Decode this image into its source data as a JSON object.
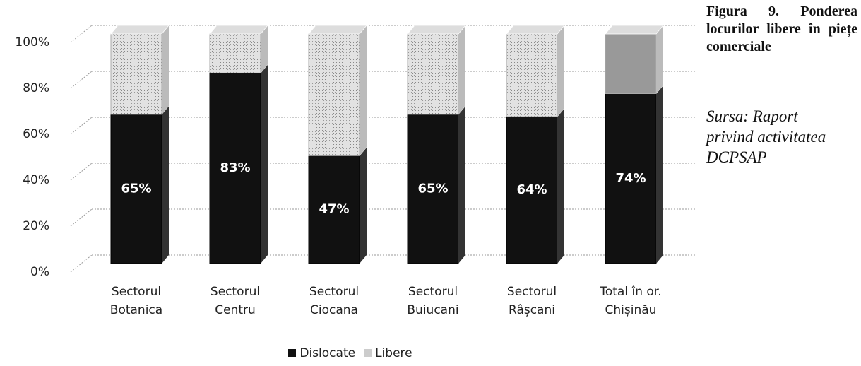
{
  "chart_data": {
    "type": "stacked_bar_3d",
    "caption": "Figura 9. Ponderea locurilor libere în piețe comerciale",
    "source": "Sursa: Raport privind activitatea DCPSAP",
    "categories": [
      "Sectorul Botanica",
      "Sectorul Centru",
      "Sectorul Ciocana",
      "Sectorul Buiucani",
      "Sectorul Râșcani",
      "Total în or. Chișinău"
    ],
    "series": [
      {
        "name": "Dislocate",
        "color": "#111111",
        "values": [
          65,
          83,
          47,
          65,
          64,
          74
        ],
        "value_labels": [
          "65%",
          "83%",
          "47%",
          "65%",
          "64%",
          "74%"
        ]
      },
      {
        "name": "Libere",
        "color": "#c8c8c8",
        "values": [
          35,
          17,
          53,
          35,
          36,
          26
        ]
      }
    ],
    "ylim": [
      0,
      100
    ],
    "yticks": [
      {
        "value": 0,
        "label": "0%"
      },
      {
        "value": 20,
        "label": "20%"
      },
      {
        "value": 40,
        "label": "40%"
      },
      {
        "value": 60,
        "label": "60%"
      },
      {
        "value": 80,
        "label": "80%"
      },
      {
        "value": 100,
        "label": "100%"
      }
    ],
    "grid": true,
    "legend": "bottom"
  }
}
